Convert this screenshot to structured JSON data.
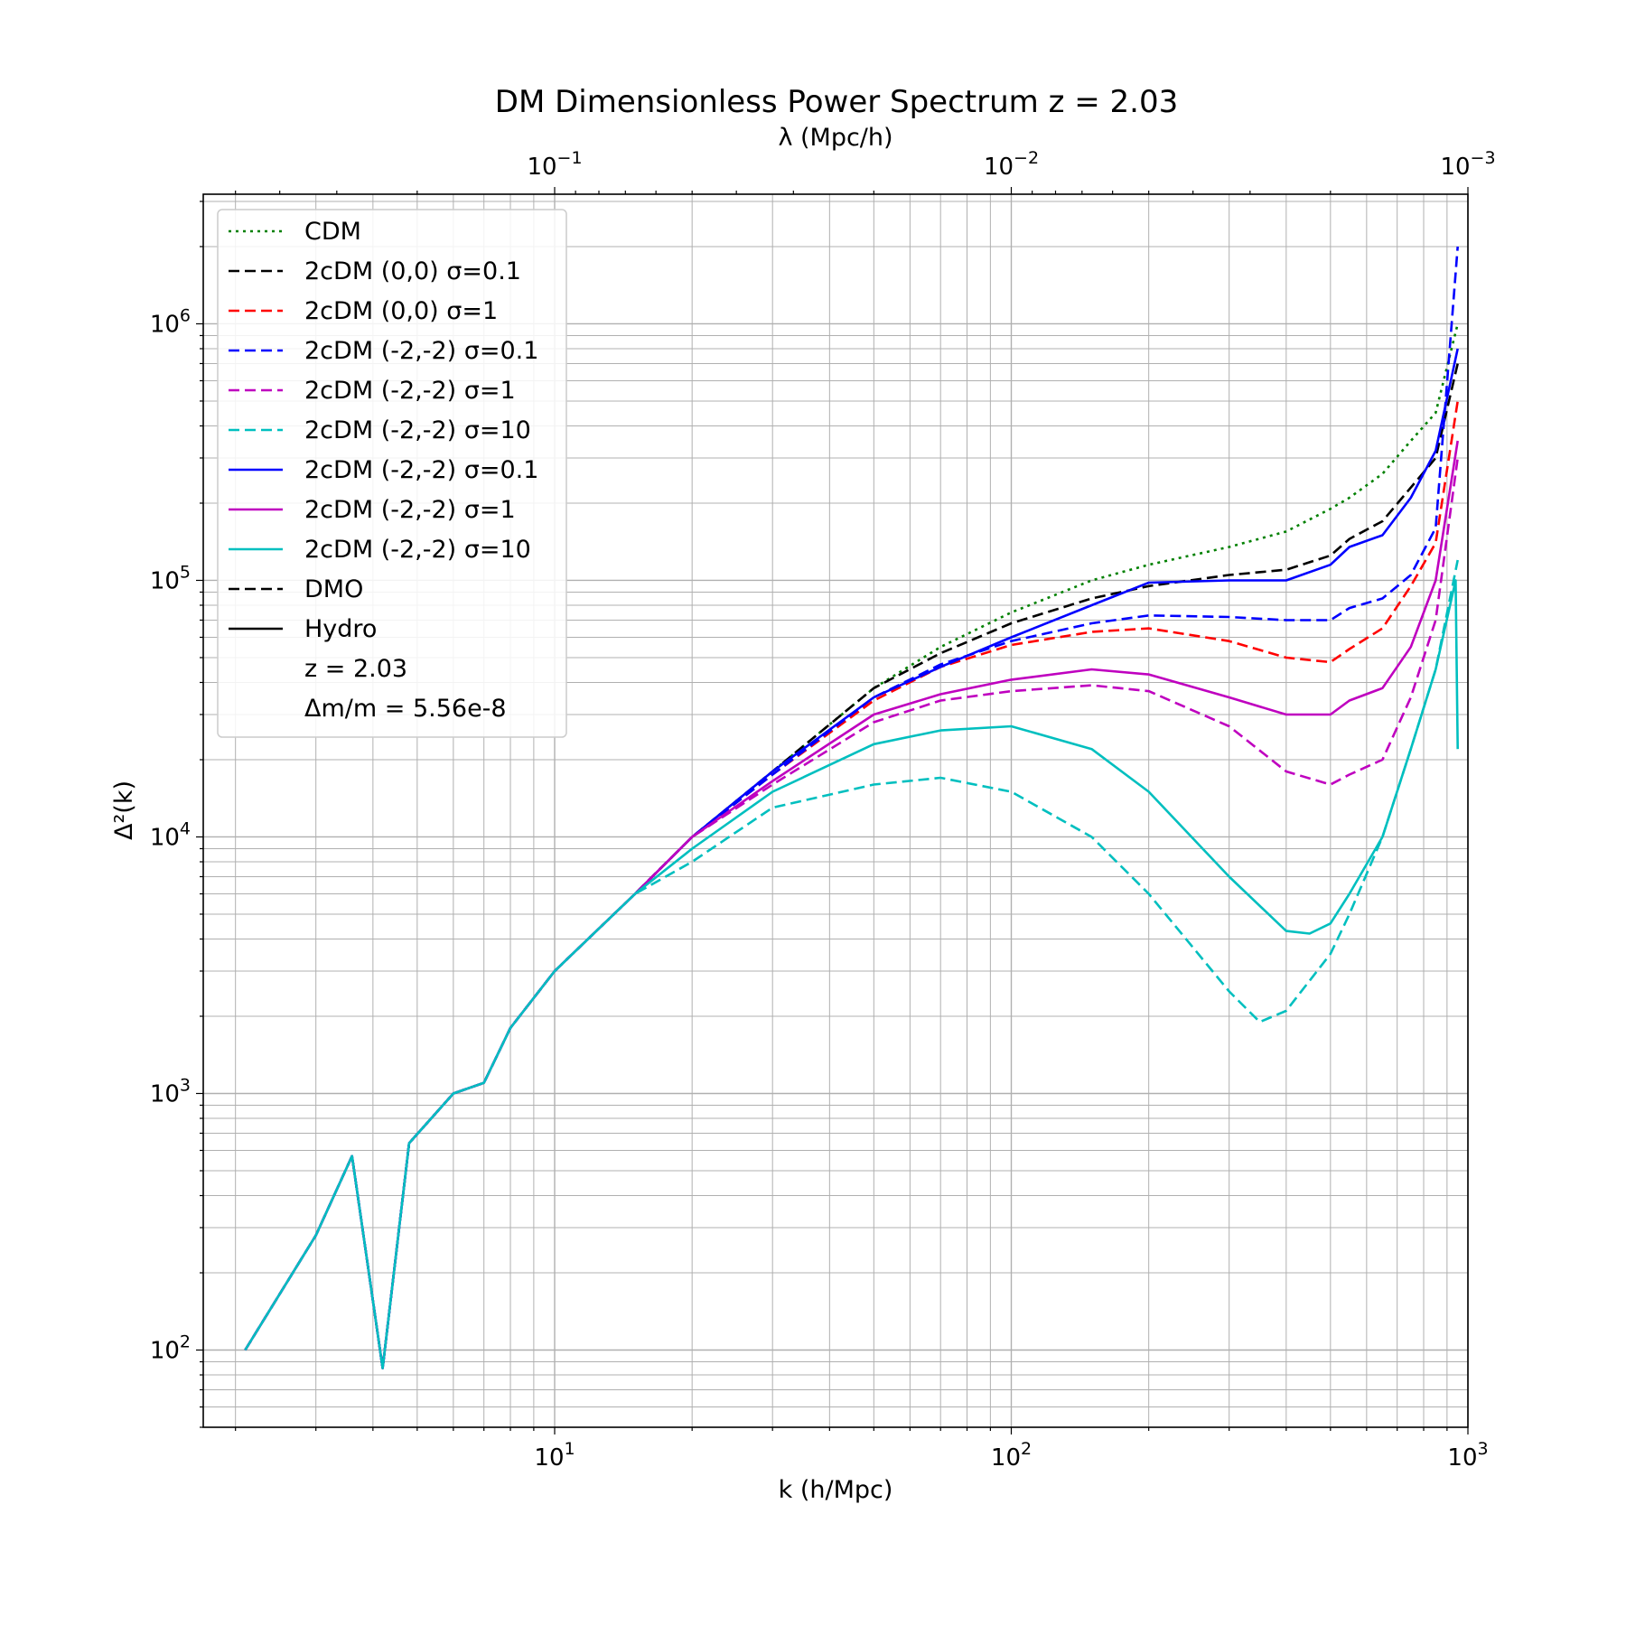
{
  "chart_data": {
    "type": "line",
    "title": "DM Dimensionless Power Spectrum z = 2.03",
    "xlabel": "k (h/Mpc)",
    "ylabel": "Δ²(k)",
    "top_xlabel": "λ (Mpc/h)",
    "x_scale": "log",
    "y_scale": "log",
    "xlim": [
      1.7,
      1000
    ],
    "ylim": [
      50,
      3200000
    ],
    "x_ticks": [
      {
        "value": 10,
        "label": "10^1"
      },
      {
        "value": 100,
        "label": "10^2"
      },
      {
        "value": 1000,
        "label": "10^3"
      }
    ],
    "y_ticks": [
      {
        "value": 100,
        "label": "10^2"
      },
      {
        "value": 1000,
        "label": "10^3"
      },
      {
        "value": 10000,
        "label": "10^4"
      },
      {
        "value": 100000,
        "label": "10^5"
      },
      {
        "value": 1000000,
        "label": "10^6"
      }
    ],
    "top_ticks": [
      {
        "value": 0.1,
        "label": "10^-1"
      },
      {
        "value": 0.01,
        "label": "10^-2"
      },
      {
        "value": 0.001,
        "label": "10^-3"
      }
    ],
    "grid": true,
    "legend_position": "top-left",
    "legend_notes": [
      "z = 2.03",
      "Δm/m = 5.56e-8"
    ],
    "series": [
      {
        "name": "CDM",
        "color": "#008000",
        "style": "dotted",
        "x": [
          2.1,
          3,
          3.6,
          4.2,
          4.8,
          6,
          7,
          8,
          10,
          15,
          20,
          30,
          50,
          70,
          100,
          150,
          200,
          300,
          400,
          500,
          550,
          650,
          750,
          850,
          950
        ],
        "y": [
          100,
          280,
          570,
          85,
          640,
          1000,
          1100,
          1800,
          3000,
          6000,
          10000,
          18000,
          38000,
          55000,
          75000,
          100000,
          115000,
          135000,
          155000,
          190000,
          210000,
          260000,
          350000,
          450000,
          1000000
        ]
      },
      {
        "name": "2cDM (0,0) σ=0.1",
        "color": "#000000",
        "style": "dashed",
        "x": [
          2.1,
          3,
          3.6,
          4.2,
          4.8,
          6,
          7,
          8,
          10,
          15,
          20,
          30,
          50,
          70,
          100,
          150,
          200,
          300,
          400,
          500,
          550,
          650,
          750,
          850,
          950
        ],
        "y": [
          100,
          280,
          570,
          85,
          640,
          1000,
          1100,
          1800,
          3000,
          6000,
          10000,
          18000,
          38000,
          52000,
          68000,
          85000,
          95000,
          105000,
          110000,
          125000,
          145000,
          170000,
          230000,
          300000,
          700000
        ]
      },
      {
        "name": "2cDM (0,0) σ=1",
        "color": "#ff0000",
        "style": "dashed",
        "x": [
          2.1,
          3,
          3.6,
          4.2,
          4.8,
          6,
          7,
          8,
          10,
          15,
          20,
          30,
          50,
          70,
          100,
          150,
          200,
          300,
          400,
          500,
          550,
          650,
          750,
          850,
          950
        ],
        "y": [
          100,
          280,
          570,
          85,
          640,
          1000,
          1100,
          1800,
          3000,
          6000,
          10000,
          17500,
          34000,
          46000,
          56000,
          63000,
          65000,
          58000,
          50000,
          48000,
          54000,
          65000,
          95000,
          140000,
          500000
        ]
      },
      {
        "name": "2cDM (-2,-2) σ=0.1",
        "color": "#0000ff",
        "style": "dashed",
        "x": [
          2.1,
          3,
          3.6,
          4.2,
          4.8,
          6,
          7,
          8,
          10,
          15,
          20,
          30,
          50,
          70,
          100,
          150,
          200,
          300,
          400,
          500,
          550,
          650,
          750,
          850,
          950
        ],
        "y": [
          100,
          280,
          570,
          85,
          640,
          1000,
          1100,
          1800,
          3000,
          6000,
          10000,
          17500,
          35000,
          47000,
          58000,
          68000,
          73000,
          72000,
          70000,
          70000,
          78000,
          85000,
          105000,
          160000,
          2000000
        ]
      },
      {
        "name": "2cDM (-2,-2) σ=1",
        "color": "#bf00bf",
        "style": "dashed",
        "x": [
          2.1,
          3,
          3.6,
          4.2,
          4.8,
          6,
          7,
          8,
          10,
          15,
          20,
          30,
          50,
          70,
          100,
          150,
          200,
          300,
          400,
          500,
          550,
          650,
          750,
          850,
          950
        ],
        "y": [
          100,
          280,
          570,
          85,
          640,
          1000,
          1100,
          1800,
          3000,
          6000,
          10000,
          16000,
          28000,
          34000,
          37000,
          39000,
          37000,
          27000,
          18000,
          16000,
          17500,
          20000,
          35000,
          70000,
          300000
        ]
      },
      {
        "name": "2cDM (-2,-2) σ=10",
        "color": "#00bfbf",
        "style": "dashed",
        "x": [
          2.1,
          3,
          3.6,
          4.2,
          4.8,
          6,
          7,
          8,
          10,
          15,
          20,
          30,
          50,
          70,
          100,
          150,
          200,
          300,
          350,
          400,
          500,
          550,
          650,
          750,
          850,
          950
        ],
        "y": [
          100,
          280,
          570,
          85,
          640,
          1000,
          1100,
          1800,
          3000,
          6000,
          8000,
          13000,
          16000,
          17000,
          15000,
          10000,
          6000,
          2500,
          1900,
          2100,
          3500,
          5000,
          10000,
          22000,
          45000,
          120000
        ]
      },
      {
        "name": "2cDM (-2,-2) σ=0.1",
        "color": "#0000ff",
        "style": "solid",
        "x": [
          2.1,
          3,
          3.6,
          4.2,
          4.8,
          6,
          7,
          8,
          10,
          15,
          20,
          30,
          50,
          70,
          100,
          150,
          200,
          300,
          400,
          500,
          550,
          650,
          750,
          850,
          950
        ],
        "y": [
          100,
          280,
          570,
          85,
          640,
          1000,
          1100,
          1800,
          3000,
          6000,
          10000,
          18000,
          35000,
          46000,
          60000,
          80000,
          98000,
          100000,
          100000,
          115000,
          135000,
          150000,
          210000,
          320000,
          800000
        ]
      },
      {
        "name": "2cDM (-2,-2) σ=1",
        "color": "#bf00bf",
        "style": "solid",
        "x": [
          2.1,
          3,
          3.6,
          4.2,
          4.8,
          6,
          7,
          8,
          10,
          15,
          20,
          30,
          50,
          70,
          100,
          150,
          200,
          300,
          400,
          500,
          550,
          650,
          750,
          850,
          950
        ],
        "y": [
          100,
          280,
          570,
          85,
          640,
          1000,
          1100,
          1800,
          3000,
          6000,
          10000,
          16500,
          30000,
          36000,
          41000,
          45000,
          43000,
          35000,
          30000,
          30000,
          34000,
          38000,
          55000,
          100000,
          350000
        ]
      },
      {
        "name": "2cDM (-2,-2) σ=10",
        "color": "#00bfbf",
        "style": "solid",
        "x": [
          2.1,
          3,
          3.6,
          4.2,
          4.8,
          6,
          7,
          8,
          10,
          15,
          20,
          30,
          50,
          70,
          100,
          150,
          200,
          300,
          400,
          450,
          500,
          550,
          650,
          750,
          850,
          940,
          950
        ],
        "y": [
          100,
          280,
          570,
          85,
          640,
          1000,
          1100,
          1800,
          3000,
          6000,
          9000,
          15000,
          23000,
          26000,
          27000,
          22000,
          15000,
          7000,
          4300,
          4200,
          4600,
          6000,
          10000,
          22000,
          45000,
          100000,
          22000
        ]
      }
    ],
    "legend_extra": [
      {
        "name": "DMO",
        "color": "#000000",
        "style": "dashed"
      },
      {
        "name": "Hydro",
        "color": "#000000",
        "style": "solid"
      }
    ]
  }
}
